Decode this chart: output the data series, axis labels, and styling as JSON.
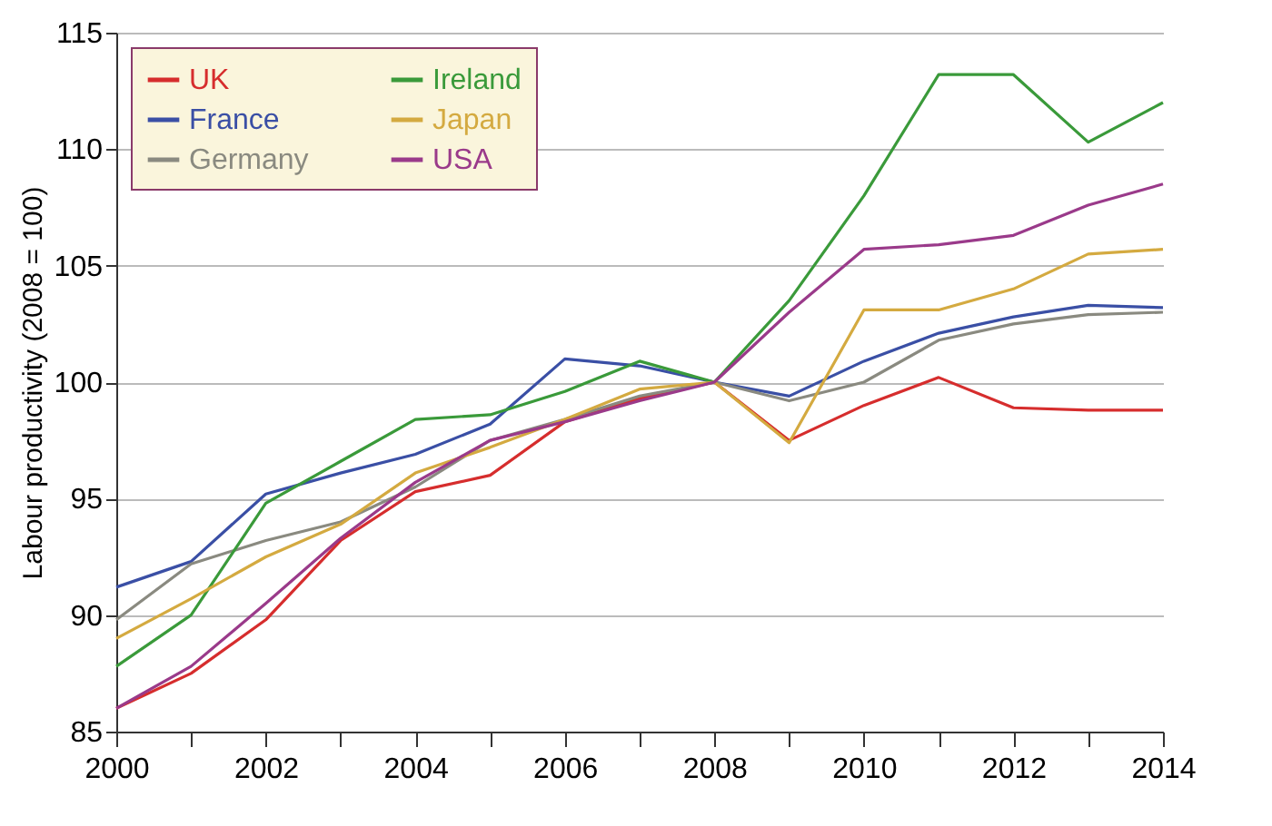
{
  "chart_data": {
    "type": "line",
    "ylabel": "Labour productivity (2008 = 100)",
    "x": [
      2000,
      2001,
      2002,
      2003,
      2004,
      2005,
      2006,
      2007,
      2008,
      2009,
      2010,
      2011,
      2012,
      2013,
      2014
    ],
    "series": [
      {
        "name": "UK",
        "color": "#d62d2d",
        "values": [
          86,
          87.5,
          89.8,
          93.2,
          95.3,
          96,
          98.3,
          99.3,
          100,
          97.5,
          99,
          100.2,
          98.9,
          98.8,
          98.8
        ]
      },
      {
        "name": "France",
        "color": "#3a4fa5",
        "values": [
          91.2,
          92.3,
          95.2,
          96.1,
          96.9,
          98.2,
          101,
          100.7,
          100,
          99.4,
          100.9,
          102.1,
          102.8,
          103.3,
          103.2
        ]
      },
      {
        "name": "Germany",
        "color": "#8a8a80",
        "values": [
          89.8,
          92.2,
          93.2,
          94,
          95.5,
          97.5,
          98.4,
          99.4,
          100,
          99.2,
          100,
          101.8,
          102.5,
          102.9,
          103
        ]
      },
      {
        "name": "Ireland",
        "color": "#3a9a3a",
        "values": [
          87.8,
          90,
          94.8,
          96.6,
          98.4,
          98.6,
          99.6,
          100.9,
          100,
          103.5,
          108,
          113.2,
          113.2,
          110.3,
          112
        ]
      },
      {
        "name": "Japan",
        "color": "#d4aa40",
        "values": [
          89,
          90.7,
          92.5,
          93.9,
          96.1,
          97.2,
          98.4,
          99.7,
          100,
          97.4,
          103.1,
          103.1,
          104,
          105.5,
          105.7
        ]
      },
      {
        "name": "USA",
        "color": "#9a3a8a",
        "values": [
          86,
          87.8,
          90.5,
          93.3,
          95.7,
          97.5,
          98.3,
          99.2,
          100,
          103,
          105.7,
          105.9,
          106.3,
          107.6,
          108.5
        ]
      }
    ],
    "xlim": [
      2000,
      2014
    ],
    "xticks": [
      2000,
      {
        "value": 2001,
        "label": null
      },
      2002,
      {
        "value": 2003,
        "label": null
      },
      2004,
      {
        "value": 2005,
        "label": null
      },
      2006,
      {
        "value": 2007,
        "label": null
      },
      2008,
      {
        "value": 2009,
        "label": null
      },
      2010,
      {
        "value": 2011,
        "label": null
      },
      2012,
      {
        "value": 2013,
        "label": null
      },
      2014
    ],
    "ylim": [
      85,
      115
    ],
    "yticks": [
      85,
      90,
      95,
      100,
      105,
      110,
      115
    ],
    "grid": "y",
    "legend": "top left",
    "marker": "none",
    "line_style": "solid"
  }
}
